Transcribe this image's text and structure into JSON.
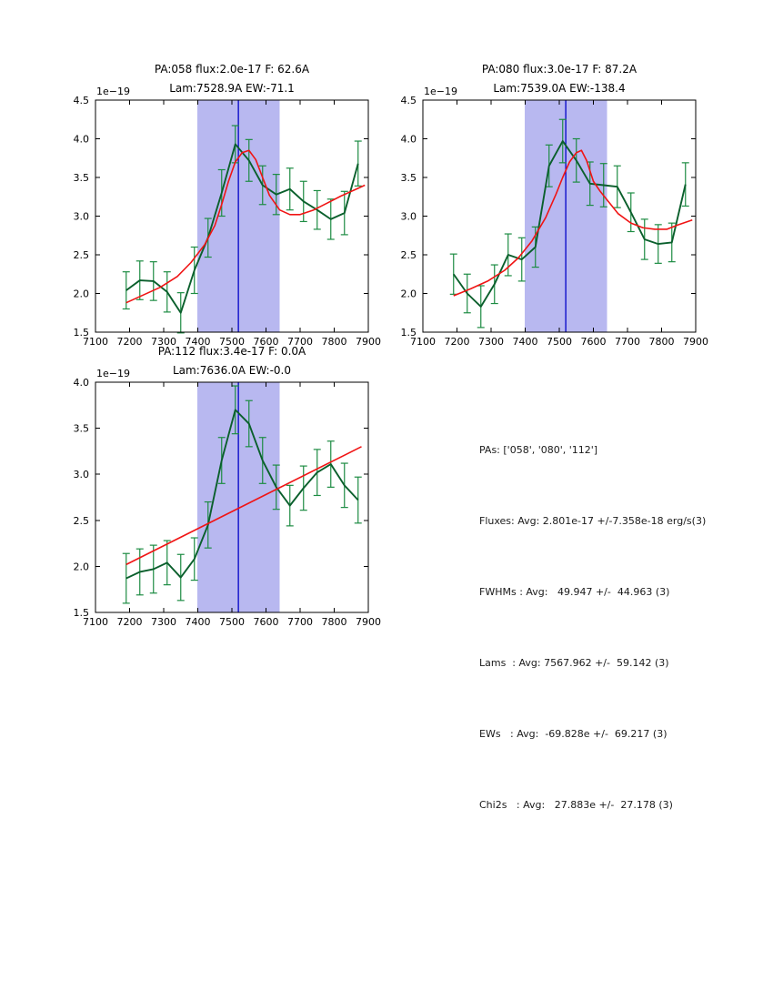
{
  "page": {
    "background": "#ffffff"
  },
  "colors": {
    "data_line": "#0a5f2c",
    "error_bar": "#1d8c43",
    "fit_line": "#f01414",
    "band_fill": "#b8b8f0",
    "center_line": "#0000c8",
    "axis": "#000000",
    "text": "#000000"
  },
  "stats_panel": {
    "lines": [
      "PAs: ['058', '080', '112']",
      "Fluxes: Avg: 2.801e-17 +/-7.358e-18 erg/s(3)",
      "FWHMs : Avg:   49.947 +/-  44.963 (3)",
      "Lams  : Avg: 7567.962 +/-  59.142 (3)",
      "EWs   : Avg:  -69.828e +/-  69.217 (3)",
      "Chi2s   : Avg:   27.883e +/-  27.178 (3)"
    ]
  },
  "chart_data": [
    {
      "type": "line",
      "title_line1": "PA:058 flux:2.0e-17 F: 62.6A",
      "title_line2": "Lam:7528.9A EW:-71.1",
      "offset_label": "1e−19",
      "xlim": [
        7100,
        7900
      ],
      "ylim": [
        1.5,
        4.5
      ],
      "xticks": [
        7100,
        7200,
        7300,
        7400,
        7500,
        7600,
        7700,
        7800,
        7900
      ],
      "xtick_labels": [
        "7100",
        "7200",
        "7300",
        "7400",
        "7500",
        "7600",
        "7700",
        "7800",
        "7900"
      ],
      "yticks": [
        1.5,
        2.0,
        2.5,
        3.0,
        3.5,
        4.0,
        4.5
      ],
      "ytick_labels": [
        "1.5",
        "2.0",
        "2.5",
        "3.0",
        "3.5",
        "4.0",
        "4.5"
      ],
      "band_x": [
        7398,
        7640
      ],
      "vline_x": 7519,
      "series": [
        {
          "name": "spectrum",
          "x": [
            7190,
            7230,
            7270,
            7310,
            7350,
            7390,
            7430,
            7470,
            7510,
            7550,
            7590,
            7630,
            7670,
            7710,
            7750,
            7790,
            7830,
            7870
          ],
          "y": [
            2.04,
            2.17,
            2.16,
            2.02,
            1.75,
            2.3,
            2.72,
            3.3,
            3.93,
            3.72,
            3.4,
            3.28,
            3.35,
            3.19,
            3.08,
            2.96,
            3.04,
            3.68
          ],
          "yerr": [
            0.24,
            0.25,
            0.25,
            0.26,
            0.26,
            0.3,
            0.25,
            0.3,
            0.24,
            0.27,
            0.25,
            0.26,
            0.27,
            0.26,
            0.25,
            0.26,
            0.28,
            0.29
          ]
        },
        {
          "name": "fit",
          "x": [
            7190,
            7240,
            7290,
            7340,
            7380,
            7420,
            7450,
            7470,
            7490,
            7510,
            7530,
            7550,
            7570,
            7590,
            7610,
            7640,
            7670,
            7700,
            7740,
            7780,
            7820,
            7860,
            7890
          ],
          "y": [
            1.88,
            1.98,
            2.08,
            2.22,
            2.4,
            2.63,
            2.88,
            3.15,
            3.45,
            3.7,
            3.82,
            3.85,
            3.73,
            3.5,
            3.27,
            3.08,
            3.02,
            3.02,
            3.08,
            3.17,
            3.26,
            3.34,
            3.4
          ]
        }
      ]
    },
    {
      "type": "line",
      "title_line1": "PA:080 flux:3.0e-17 F: 87.2A",
      "title_line2": "Lam:7539.0A EW:-138.4",
      "offset_label": "1e−19",
      "xlim": [
        7100,
        7900
      ],
      "ylim": [
        1.5,
        4.5
      ],
      "xticks": [
        7100,
        7200,
        7300,
        7400,
        7500,
        7600,
        7700,
        7800,
        7900
      ],
      "xtick_labels": [
        "7100",
        "7200",
        "7300",
        "7400",
        "7500",
        "7600",
        "7700",
        "7800",
        "7900"
      ],
      "yticks": [
        1.5,
        2.0,
        2.5,
        3.0,
        3.5,
        4.0,
        4.5
      ],
      "ytick_labels": [
        "1.5",
        "2.0",
        "2.5",
        "3.0",
        "3.5",
        "4.0",
        "4.5"
      ],
      "band_x": [
        7398,
        7640
      ],
      "vline_x": 7519,
      "series": [
        {
          "name": "spectrum",
          "x": [
            7190,
            7230,
            7270,
            7310,
            7350,
            7390,
            7430,
            7470,
            7510,
            7550,
            7590,
            7630,
            7670,
            7710,
            7750,
            7790,
            7830,
            7870
          ],
          "y": [
            2.25,
            2.0,
            1.83,
            2.12,
            2.5,
            2.44,
            2.6,
            3.65,
            3.97,
            3.72,
            3.42,
            3.4,
            3.38,
            3.05,
            2.7,
            2.64,
            2.66,
            3.41
          ],
          "yerr": [
            0.26,
            0.25,
            0.27,
            0.25,
            0.27,
            0.28,
            0.26,
            0.27,
            0.28,
            0.28,
            0.28,
            0.28,
            0.27,
            0.25,
            0.26,
            0.25,
            0.25,
            0.28
          ]
        },
        {
          "name": "fit",
          "x": [
            7190,
            7240,
            7290,
            7340,
            7380,
            7420,
            7460,
            7490,
            7510,
            7530,
            7550,
            7565,
            7580,
            7600,
            7620,
            7640,
            7673,
            7710,
            7745,
            7780,
            7815,
            7850,
            7890
          ],
          "y": [
            1.97,
            2.06,
            2.16,
            2.3,
            2.46,
            2.68,
            2.98,
            3.28,
            3.5,
            3.7,
            3.82,
            3.85,
            3.72,
            3.45,
            3.32,
            3.21,
            3.03,
            2.91,
            2.85,
            2.83,
            2.83,
            2.89,
            2.95
          ]
        }
      ]
    },
    {
      "type": "line",
      "title_line1": "PA:112 flux:3.4e-17 F: 0.0A",
      "title_line2": "Lam:7636.0A EW:-0.0",
      "offset_label": "1e−19",
      "xlim": [
        7100,
        7900
      ],
      "ylim": [
        1.5,
        4.0
      ],
      "xticks": [
        7100,
        7200,
        7300,
        7400,
        7500,
        7600,
        7700,
        7800,
        7900
      ],
      "xtick_labels": [
        "7100",
        "7200",
        "7300",
        "7400",
        "7500",
        "7600",
        "7700",
        "7800",
        "7900"
      ],
      "yticks": [
        1.5,
        2.0,
        2.5,
        3.0,
        3.5,
        4.0
      ],
      "ytick_labels": [
        "1.5",
        "2.0",
        "2.5",
        "3.0",
        "3.5",
        "4.0"
      ],
      "band_x": [
        7398,
        7640
      ],
      "vline_x": 7519,
      "series": [
        {
          "name": "spectrum",
          "x": [
            7190,
            7230,
            7270,
            7310,
            7350,
            7390,
            7430,
            7470,
            7510,
            7550,
            7590,
            7630,
            7670,
            7710,
            7750,
            7790,
            7830,
            7870
          ],
          "y": [
            1.87,
            1.94,
            1.97,
            2.04,
            1.88,
            2.08,
            2.45,
            3.15,
            3.7,
            3.55,
            3.15,
            2.86,
            2.66,
            2.85,
            3.02,
            3.11,
            2.88,
            2.72
          ],
          "yerr": [
            0.27,
            0.25,
            0.26,
            0.24,
            0.25,
            0.23,
            0.25,
            0.25,
            0.26,
            0.25,
            0.25,
            0.24,
            0.22,
            0.24,
            0.25,
            0.25,
            0.24,
            0.25
          ]
        },
        {
          "name": "fit",
          "x": [
            7190,
            7880
          ],
          "y": [
            2.02,
            3.3
          ]
        }
      ]
    }
  ]
}
